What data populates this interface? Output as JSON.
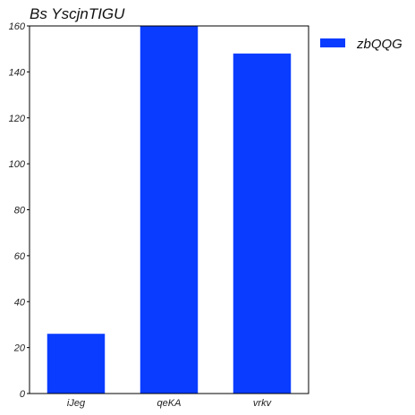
{
  "chart_data": {
    "type": "bar",
    "title": "Bs YscjnTIGU",
    "xlabel": "",
    "ylabel": "",
    "categories": [
      "iJeg",
      "qeKA",
      "vrkv"
    ],
    "series": [
      {
        "name": "zbQQG",
        "values": [
          26,
          160,
          148
        ],
        "color": "#0a3cff"
      }
    ],
    "ylim": [
      0,
      160
    ],
    "yticks": [
      0,
      20,
      40,
      60,
      80,
      100,
      120,
      140,
      160
    ],
    "grid": false,
    "legend_position": "outside-top-right"
  }
}
